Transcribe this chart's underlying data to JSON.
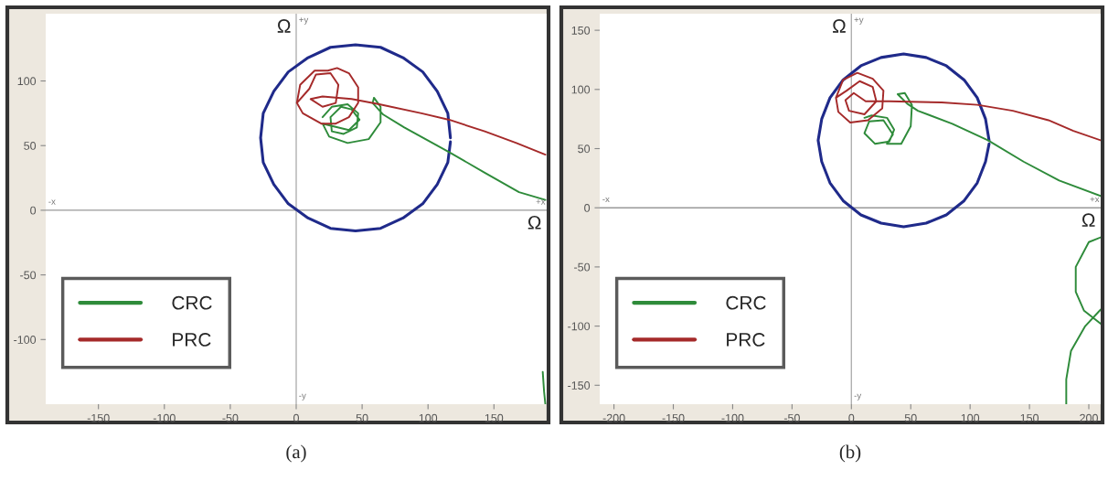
{
  "chart_data": [
    {
      "type": "line",
      "title": "(a)",
      "xlabel": "Ω",
      "ylabel": "Ω",
      "xlim": [
        -190,
        190
      ],
      "ylim": [
        -150,
        152
      ],
      "xticks": [
        -150,
        -100,
        -50,
        0,
        50,
        100,
        150
      ],
      "yticks": [
        -100,
        -50,
        0,
        50,
        100
      ],
      "grid": false,
      "legend": "bottom left",
      "ref_lines": [
        {
          "axis": "x",
          "value": 0,
          "color": "#b0b0b0"
        },
        {
          "axis": "y",
          "value": 0,
          "color": "#999999"
        }
      ],
      "annotations": [
        {
          "text": "+y",
          "x": 0,
          "y": 152
        },
        {
          "text": "-y",
          "x": 0,
          "y": -150
        },
        {
          "text": "+x",
          "x": 190,
          "y": 0
        },
        {
          "text": "-x",
          "x": -190,
          "y": 0
        }
      ],
      "series": [
        {
          "color": "#1f2a8a",
          "x": [
            117,
            115,
            107,
            96,
            81,
            64,
            45,
            26,
            9,
            -6,
            -17,
            -25,
            -27,
            -25,
            -17,
            -6,
            9,
            26,
            45,
            64,
            81,
            96,
            107,
            115,
            117
          ],
          "values": [
            56,
            75,
            92,
            107,
            118,
            126,
            128,
            126,
            118,
            107,
            92,
            75,
            56,
            37,
            20,
            5,
            -6,
            -14,
            -16,
            -14,
            -6,
            5,
            20,
            37,
            53
          ]
        },
        {
          "name": "CRC",
          "color": "#2e8b3a",
          "x": [
            20,
            27,
            39,
            47,
            46,
            36,
            27,
            26,
            34,
            42,
            48,
            40,
            20,
            25,
            39,
            55,
            64,
            64,
            59,
            58,
            66,
            82,
            116,
            143,
            169,
            189,
            null,
            187,
            188,
            189
          ],
          "values": [
            72,
            80,
            82,
            75,
            64,
            59,
            61,
            72,
            80,
            78,
            70,
            62,
            67,
            57,
            52,
            55,
            68,
            80,
            87,
            83,
            74,
            64,
            45,
            29,
            14,
            8,
            null,
            -125,
            -140,
            -150
          ]
        },
        {
          "name": "PRC",
          "color": "#a52a2a",
          "x": [
            0.5,
            3,
            14,
            24,
            31,
            40,
            47,
            47,
            40,
            30,
            19,
            5,
            0.5,
            10,
            15,
            26,
            32,
            30,
            20,
            11,
            20,
            42,
            63,
            95,
            116,
            143,
            167,
            189
          ],
          "values": [
            83,
            97,
            108,
            108,
            110,
            106,
            95,
            83,
            72,
            67,
            67,
            75,
            83,
            94,
            105,
            106,
            97,
            83,
            80,
            86,
            88,
            86,
            82,
            75,
            70,
            61,
            52,
            43
          ]
        }
      ]
    },
    {
      "type": "line",
      "title": "(b)",
      "xlabel": "Ω",
      "ylabel": "Ω",
      "xlim": [
        -212,
        210
      ],
      "ylim": [
        -166,
        164
      ],
      "xticks": [
        -200,
        -150,
        -100,
        -50,
        0,
        50,
        100,
        150,
        200
      ],
      "yticks": [
        -150,
        -100,
        -50,
        0,
        50,
        100,
        150
      ],
      "grid": false,
      "legend": "bottom left",
      "ref_lines": [
        {
          "axis": "x",
          "value": 0,
          "color": "#b0b0b0"
        },
        {
          "axis": "y",
          "value": 0,
          "color": "#999999"
        }
      ],
      "annotations": [
        {
          "text": "+y",
          "x": 0,
          "y": 164
        },
        {
          "text": "-y",
          "x": 0,
          "y": -166
        },
        {
          "text": "+x",
          "x": 210,
          "y": 0
        },
        {
          "text": "-x",
          "x": -212,
          "y": 0
        }
      ],
      "series": [
        {
          "color": "#1f2a8a",
          "x": [
            116,
            113,
            106,
            95,
            80,
            63,
            44,
            25,
            8,
            -7,
            -18,
            -25,
            -28,
            -25,
            -18,
            -7,
            8,
            25,
            44,
            63,
            80,
            95,
            106,
            113,
            116
          ],
          "values": [
            57,
            75,
            93,
            108,
            120,
            127,
            130,
            127,
            120,
            108,
            93,
            75,
            57,
            39,
            21,
            6,
            -6,
            -13,
            -16,
            -13,
            -6,
            6,
            21,
            39,
            54
          ]
        },
        {
          "name": "CRC",
          "color": "#2e8b3a",
          "x": [
            11,
            17,
            30,
            36,
            32,
            20,
            11,
            15,
            27,
            35,
            30,
            42,
            50,
            51,
            45,
            39,
            47,
            56,
            85,
            115,
            145,
            175,
            210,
            null,
            210,
            200,
            189,
            189,
            196,
            210,
            null,
            210,
            197,
            185,
            181,
            181
          ],
          "values": [
            76,
            78,
            76,
            66,
            56,
            54,
            63,
            73,
            74,
            62,
            54,
            54,
            69,
            87,
            97,
            96,
            88,
            82,
            71,
            57,
            39,
            23,
            10,
            null,
            -25,
            -29,
            -50,
            -71,
            -87,
            -98,
            null,
            -86,
            -100,
            -121,
            -145,
            -166
          ]
        },
        {
          "name": "PRC",
          "color": "#a52a2a",
          "x": [
            -13,
            -7,
            5,
            18,
            27,
            26,
            14,
            -1,
            -11,
            -13,
            -4,
            7,
            18,
            21,
            11,
            -2,
            -5,
            2,
            12,
            32,
            76,
            106,
            136,
            166,
            187,
            210
          ],
          "values": [
            93,
            108,
            114,
            109,
            99,
            84,
            74,
            72,
            81,
            93,
            99,
            107,
            102,
            90,
            79,
            82,
            91,
            97,
            90,
            90,
            89,
            87,
            82,
            74,
            65,
            57
          ]
        }
      ]
    }
  ]
}
